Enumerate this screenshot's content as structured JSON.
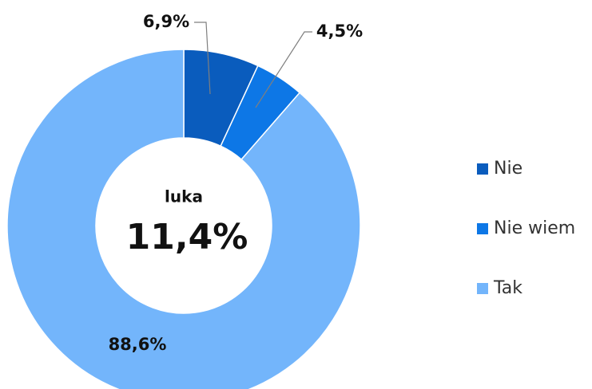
{
  "chart_data": {
    "type": "donut",
    "categories": [
      "Nie",
      "Nie wiem",
      "Tak"
    ],
    "values": [
      6.9,
      4.5,
      88.6
    ],
    "value_labels": [
      "6,9%",
      "4,5%",
      "88,6%"
    ],
    "colors": [
      "#0a5cbd",
      "#0d77e6",
      "#73b5fb"
    ],
    "center_title": "luka",
    "center_text": "11,4%",
    "legend": "right"
  }
}
